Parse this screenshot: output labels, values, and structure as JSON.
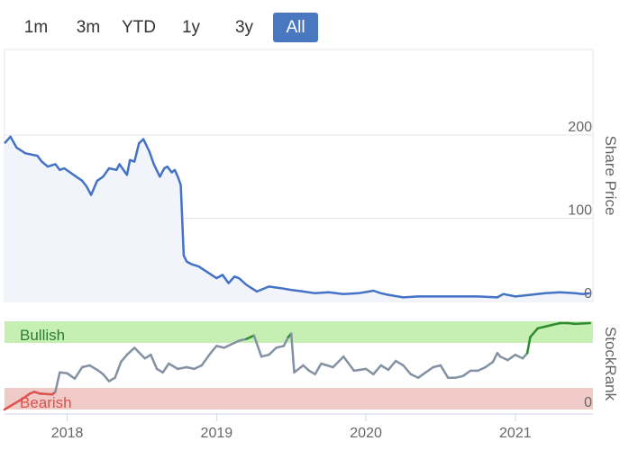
{
  "range_selector": {
    "buttons": [
      {
        "label": "1m",
        "active": false
      },
      {
        "label": "3m",
        "active": false
      },
      {
        "label": "YTD",
        "active": false
      },
      {
        "label": "1y",
        "active": false
      },
      {
        "label": "3y",
        "active": false
      },
      {
        "label": "All",
        "active": true
      }
    ]
  },
  "colors": {
    "price_line": "#4472c4",
    "price_fill": "#f2f4fb",
    "bullish_zone": "#c6efb4",
    "bearish_zone": "#f0cac6",
    "bullish_text": "#2e7d32",
    "bearish_text": "#d9534f",
    "stockrank_neutral": "#8391a3",
    "stockrank_bullish": "#2e8b2e",
    "stockrank_bearish": "#d9534f",
    "active_button": "#4a78c0"
  },
  "chart_data": [
    {
      "type": "area",
      "ylabel": "Share Price",
      "ytick_labels": [
        "200",
        "100",
        "0"
      ],
      "yticks": [
        200,
        100,
        0
      ],
      "ylim": [
        0,
        200
      ],
      "x": [
        2017.58,
        2017.62,
        2017.66,
        2017.72,
        2017.8,
        2017.83,
        2017.87,
        2017.92,
        2017.95,
        2017.98,
        2018.02,
        2018.06,
        2018.1,
        2018.13,
        2018.16,
        2018.2,
        2018.24,
        2018.28,
        2018.33,
        2018.35,
        2018.4,
        2018.42,
        2018.45,
        2018.48,
        2018.51,
        2018.55,
        2018.58,
        2018.62,
        2018.65,
        2018.67,
        2018.7,
        2018.72,
        2018.74,
        2018.76,
        2018.78,
        2018.8,
        2018.83,
        2018.88,
        2018.94,
        2019.0,
        2019.04,
        2019.08,
        2019.12,
        2019.15,
        2019.2,
        2019.27,
        2019.35,
        2019.43,
        2019.5,
        2019.58,
        2019.66,
        2019.75,
        2019.85,
        2019.95,
        2020.02,
        2020.05,
        2020.1,
        2020.15,
        2020.25,
        2020.35,
        2020.45,
        2020.6,
        2020.75,
        2020.88,
        2020.92,
        2021.0,
        2021.1,
        2021.2,
        2021.3,
        2021.4,
        2021.45,
        2021.5
      ],
      "series": [
        {
          "values": [
            190,
            198,
            185,
            178,
            175,
            168,
            162,
            165,
            158,
            160,
            155,
            150,
            145,
            138,
            128,
            145,
            150,
            160,
            158,
            165,
            152,
            170,
            168,
            190,
            195,
            180,
            165,
            150,
            160,
            162,
            155,
            158,
            150,
            140,
            55,
            48,
            45,
            42,
            35,
            28,
            32,
            22,
            30,
            28,
            20,
            12,
            18,
            16,
            14,
            12,
            10,
            11,
            9,
            10,
            12,
            13,
            10,
            8,
            5,
            6,
            6,
            6,
            6,
            5,
            9,
            6,
            8,
            10,
            11,
            10,
            9,
            10
          ]
        }
      ]
    },
    {
      "type": "line",
      "ylabel": "StockRank",
      "ytick_labels": [
        "0"
      ],
      "zones": [
        {
          "name": "Bullish",
          "range": [
            80,
            100
          ]
        },
        {
          "name": "Bearish",
          "range": [
            0,
            20
          ]
        }
      ],
      "ylim": [
        0,
        100
      ],
      "x": [
        2017.58,
        2017.7,
        2017.75,
        2017.78,
        2017.82,
        2017.9,
        2017.92,
        2017.95,
        2018.0,
        2018.05,
        2018.1,
        2018.15,
        2018.2,
        2018.24,
        2018.28,
        2018.32,
        2018.36,
        2018.4,
        2018.45,
        2018.52,
        2018.56,
        2018.6,
        2018.64,
        2018.68,
        2018.74,
        2018.8,
        2018.85,
        2018.9,
        2018.96,
        2019.0,
        2019.05,
        2019.1,
        2019.15,
        2019.2,
        2019.25,
        2019.3,
        2019.35,
        2019.4,
        2019.45,
        2019.48,
        2019.5,
        2019.52,
        2019.58,
        2019.62,
        2019.66,
        2019.7,
        2019.78,
        2019.85,
        2019.92,
        2020.0,
        2020.05,
        2020.1,
        2020.15,
        2020.2,
        2020.25,
        2020.3,
        2020.35,
        2020.4,
        2020.45,
        2020.5,
        2020.55,
        2020.6,
        2020.65,
        2020.7,
        2020.75,
        2020.8,
        2020.85,
        2020.88,
        2020.9,
        2020.95,
        2021.0,
        2021.05,
        2021.08,
        2021.1,
        2021.15,
        2021.2,
        2021.25,
        2021.3,
        2021.35,
        2021.4,
        2021.5
      ],
      "series": [
        {
          "values": [
            0,
            12,
            18,
            20,
            18,
            17,
            20,
            42,
            41,
            35,
            48,
            50,
            45,
            40,
            32,
            36,
            54,
            62,
            70,
            58,
            62,
            46,
            42,
            52,
            46,
            48,
            46,
            50,
            64,
            72,
            70,
            74,
            78,
            80,
            84,
            60,
            62,
            70,
            72,
            82,
            86,
            42,
            50,
            44,
            40,
            52,
            48,
            60,
            44,
            46,
            40,
            50,
            45,
            55,
            50,
            40,
            36,
            42,
            48,
            50,
            36,
            36,
            38,
            44,
            44,
            48,
            54,
            64,
            60,
            56,
            62,
            58,
            64,
            82,
            92,
            94,
            96,
            98,
            98,
            97,
            98
          ],
          "bullish_from_index": 73
        }
      ]
    },
    {
      "type": "line",
      "x_tick_labels": [
        "2018",
        "2019",
        "2020",
        "2021"
      ],
      "x_ticks": [
        2018,
        2019,
        2020,
        2021
      ],
      "xlim": [
        2017.58,
        2021.52
      ]
    }
  ]
}
